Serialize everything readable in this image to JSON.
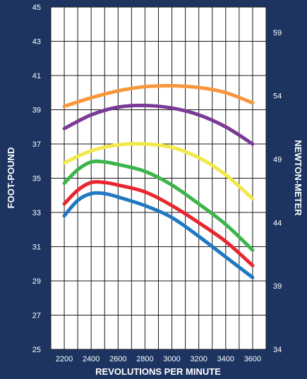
{
  "chart_data": {
    "type": "line",
    "xlabel": "REVOLUTIONS PER MINUTE",
    "ylabel": "FOOT-POUND",
    "y2label": "NEWTON-METER",
    "xlim": [
      2100,
      3700
    ],
    "ylim": [
      25,
      45
    ],
    "y2lim": [
      34,
      61
    ],
    "x_ticks": [
      2200,
      2400,
      2600,
      2800,
      3000,
      3200,
      3400,
      3600
    ],
    "y_ticks": [
      25,
      27,
      29,
      31,
      33,
      35,
      37,
      39,
      41,
      43,
      45
    ],
    "y2_ticks": [
      34,
      39,
      44,
      49,
      54,
      59
    ],
    "grid": true,
    "series": [
      {
        "color": "#f7963d",
        "x": [
          2200,
          2400,
          2600,
          2800,
          3000,
          3200,
          3400,
          3600
        ],
        "values": [
          39.2,
          39.7,
          40.1,
          40.35,
          40.4,
          40.3,
          40.0,
          39.4
        ]
      },
      {
        "color": "#7b3a96",
        "x": [
          2200,
          2400,
          2600,
          2800,
          3000,
          3200,
          3400,
          3600
        ],
        "values": [
          37.9,
          38.7,
          39.15,
          39.25,
          39.1,
          38.7,
          38.0,
          37.0
        ]
      },
      {
        "color": "#f2e84a",
        "x": [
          2200,
          2400,
          2600,
          2800,
          3000,
          3200,
          3400,
          3600
        ],
        "values": [
          35.9,
          36.6,
          36.95,
          37.0,
          36.8,
          36.2,
          35.2,
          33.8
        ]
      },
      {
        "color": "#3bb54a",
        "x": [
          2200,
          2300,
          2400,
          2500,
          2600,
          2800,
          3000,
          3200,
          3400,
          3600
        ],
        "values": [
          34.7,
          35.5,
          35.95,
          35.95,
          35.8,
          35.4,
          34.6,
          33.5,
          32.3,
          30.8
        ]
      },
      {
        "color": "#e8262d",
        "x": [
          2200,
          2300,
          2400,
          2500,
          2600,
          2800,
          3000,
          3200,
          3400,
          3600
        ],
        "values": [
          33.5,
          34.3,
          34.75,
          34.75,
          34.6,
          34.2,
          33.4,
          32.4,
          31.3,
          29.9
        ]
      },
      {
        "color": "#1f78c1",
        "x": [
          2200,
          2300,
          2400,
          2500,
          2600,
          2800,
          3000,
          3200,
          3400,
          3600
        ],
        "values": [
          32.8,
          33.7,
          34.1,
          34.1,
          33.9,
          33.4,
          32.7,
          31.6,
          30.4,
          29.2
        ]
      }
    ]
  }
}
